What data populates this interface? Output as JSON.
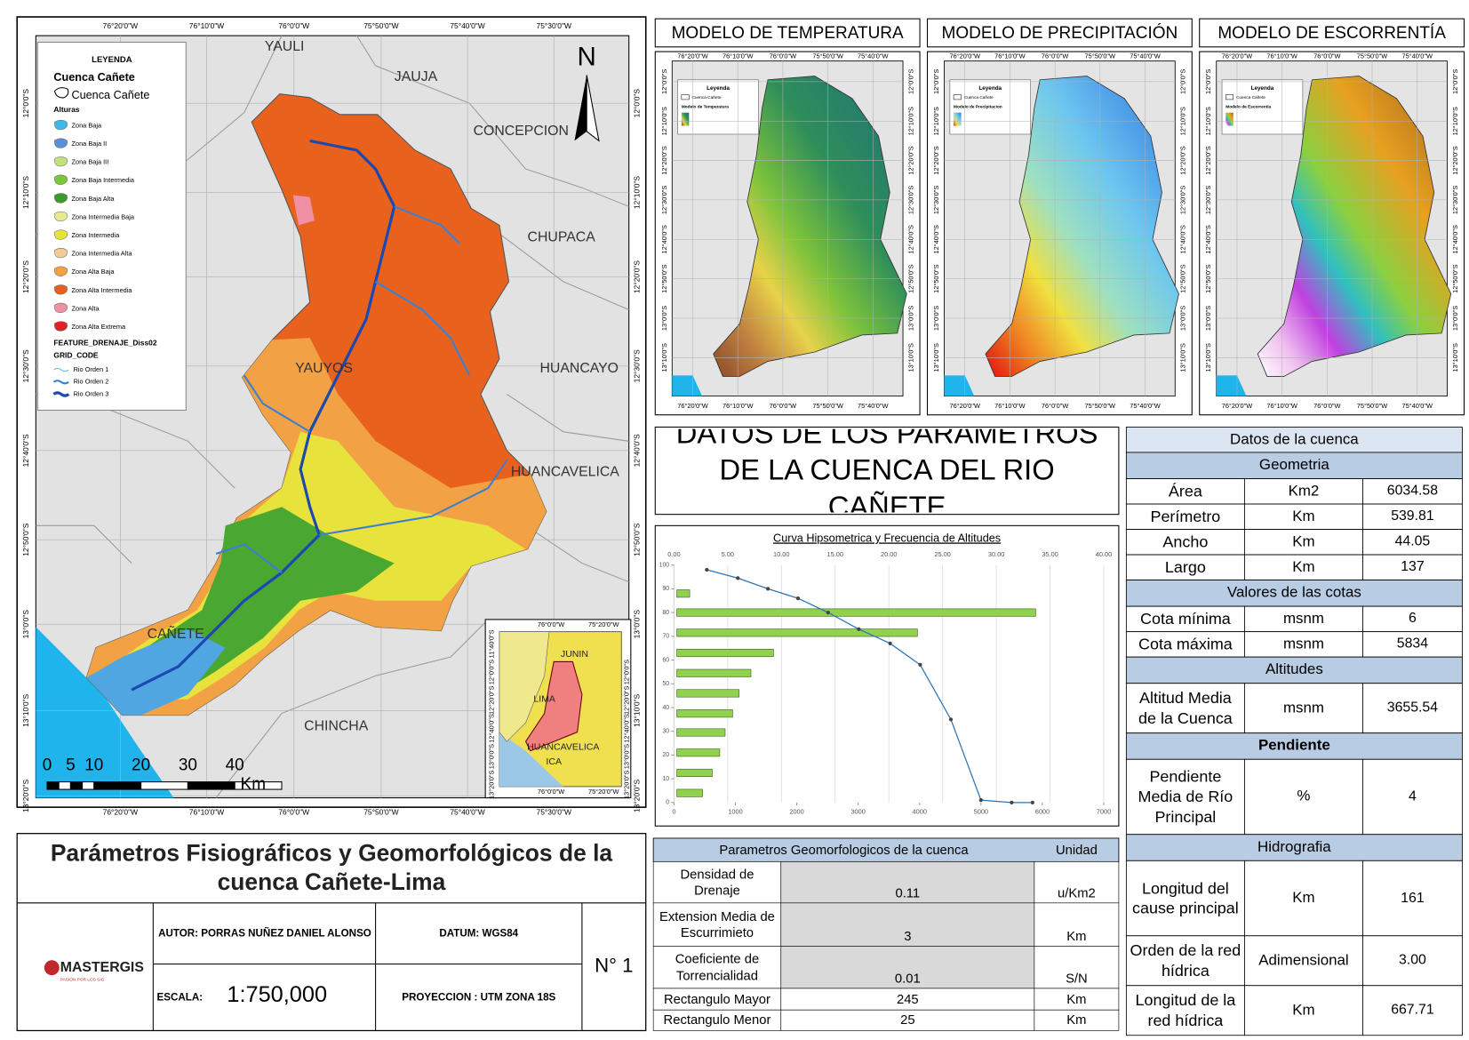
{
  "map": {
    "legend_title": "LEYENDA",
    "basin_heading": "Cuenca Cañete",
    "basin_item": "Cuenca Cañete",
    "heights_heading": "Alturas",
    "zones": [
      {
        "label": "Zona Baja",
        "color": "#3fb8e8"
      },
      {
        "label": "Zona Baja II",
        "color": "#5a8ed8"
      },
      {
        "label": "Zona Baja III",
        "color": "#bfe27c"
      },
      {
        "label": "Zona Baja Intermedia",
        "color": "#78c83a"
      },
      {
        "label": "Zona Baja Alta",
        "color": "#3a9a2c"
      },
      {
        "label": "Zona Intermedia Baja",
        "color": "#e8ea90"
      },
      {
        "label": "Zona Intermedia",
        "color": "#e8e23c"
      },
      {
        "label": "Zona Intermedia Alta",
        "color": "#f2cc98"
      },
      {
        "label": "Zona Alta Baja",
        "color": "#f2a244"
      },
      {
        "label": "Zona Alta Intermedia",
        "color": "#e8601e"
      },
      {
        "label": "Zona Alta",
        "color": "#f090a4"
      },
      {
        "label": "Zona Alta Extrema",
        "color": "#e02424"
      }
    ],
    "drainage_heading": "FEATURE_DRENAJE_Diss02",
    "grid_code": "GRID_CODE",
    "rivers": [
      {
        "label": "Rio Orden 1",
        "color": "#6cc0e8"
      },
      {
        "label": "Rio Orden 2",
        "color": "#3c80d2"
      },
      {
        "label": "Rio Orden 3",
        "color": "#1c48b0"
      }
    ],
    "north": "N",
    "places": [
      "YAULI",
      "JAUJA",
      "CONCEPCION",
      "CHUPACA",
      "HUANCAYO",
      "HUANCAVELICA",
      "YAUYOS",
      "CAÑETE",
      "CHINCHA"
    ],
    "scale_labels": [
      "0",
      "5",
      "10",
      "20",
      "30",
      "40"
    ],
    "scale_unit": "Km",
    "lon_labels": [
      "76°20'0\"W",
      "76°10'0\"W",
      "76°0'0\"W",
      "75°50'0\"W",
      "75°40'0\"W",
      "75°30'0\"W"
    ],
    "lat_labels": [
      "12°0'0\"S",
      "12°10'0\"S",
      "12°20'0\"S",
      "12°30'0\"S",
      "12°40'0\"S",
      "12°50'0\"S",
      "13°0'0\"S",
      "13°10'0\"S",
      "13°20'0\"S"
    ],
    "inset": {
      "labels": [
        "JUNIN",
        "LIMA",
        "HUANCAVELICA",
        "ICA"
      ],
      "lon_labels": [
        "76°0'0\"W",
        "75°20'0\"W"
      ],
      "lat_labels": [
        "11°40'0\"S",
        "12°0'0\"S",
        "12°20'0\"S",
        "12°40'0\"S",
        "13°0'0\"S",
        "13°20'0\"S"
      ]
    }
  },
  "models": [
    {
      "title": "MODELO DE TEMPERATURA",
      "legend_title": "Leyenda",
      "legend_item": "Cuenca Cañete",
      "legend_layer": "Modelo de Temperatura"
    },
    {
      "title": "MODELO DE PRECIPITACIÓN",
      "legend_title": "Leyenda",
      "legend_item": "Cuenca Cañete",
      "legend_layer": "Modelo de Precipitacion"
    },
    {
      "title": "MODELO DE ESCORRENTÍA",
      "legend_title": "Leyenda",
      "legend_item": "Cuenca Cañete",
      "legend_layer": "Modelo de Escorrentia"
    }
  ],
  "model_lon_labels": [
    "76°20'0\"W",
    "76°10'0\"W",
    "76°0'0\"W",
    "75°50'0\"W",
    "75°40'0\"W"
  ],
  "model_lat_labels": [
    "12°0'0\"S",
    "12°10'0\"S",
    "12°20'0\"S",
    "12°30'0\"S",
    "12°40'0\"S",
    "12°50'0\"S",
    "13°0'0\"S",
    "13°10'0\"S"
  ],
  "summary_title": "DATOS DE LOS PARAMETROS DE LA CUENCA DEL RIO CAÑETE",
  "chart_data": {
    "type": "hypsometric",
    "title": "Curva Hipsometrica y Frecuencia de Altitudes",
    "ylim": [
      0,
      100
    ],
    "yticks": [
      0,
      10,
      20,
      30,
      40,
      50,
      60,
      70,
      80,
      90,
      100
    ],
    "xlim": [
      0,
      7000
    ],
    "xticks": [
      0,
      1000,
      2000,
      3000,
      4000,
      5000,
      6000,
      7000
    ],
    "x2lim": [
      0,
      40
    ],
    "x2ticks": [
      {
        "value": 0,
        "label": "0.00"
      },
      {
        "value": 5,
        "label": "5.00"
      },
      {
        "value": 10,
        "label": "10.00"
      },
      {
        "value": 15,
        "label": "15.00"
      },
      {
        "value": 20,
        "label": "20.00"
      },
      {
        "value": 25,
        "label": "25.00"
      },
      {
        "value": 30,
        "label": "30.00"
      },
      {
        "value": 35,
        "label": "35.00"
      },
      {
        "value": 40,
        "label": "40.00"
      }
    ],
    "grid": true,
    "bars": {
      "color": "#92d050",
      "y": [
        4,
        12.5,
        21,
        29.5,
        37.5,
        46,
        54.5,
        63,
        71.5,
        80,
        88
      ],
      "values": [
        2.4,
        3.3,
        4.0,
        4.5,
        5.2,
        5.8,
        6.9,
        9.0,
        22.4,
        33.4,
        1.2
      ]
    },
    "line": {
      "color": "#2e75b6",
      "x": [
        535,
        1040,
        1530,
        2020,
        2510,
        3010,
        3520,
        4010,
        4510,
        5000,
        5500,
        5840
      ],
      "y": [
        98,
        94.5,
        90,
        86,
        80,
        73,
        67,
        58,
        35,
        1,
        0,
        0
      ]
    }
  },
  "basin_table": {
    "title": "Datos de la cuenca",
    "sections": [
      {
        "heading": "Geometria",
        "rows": [
          [
            "Área",
            "Km2",
            "6034.58"
          ],
          [
            "Perímetro",
            "Km",
            "539.81"
          ],
          [
            "Ancho",
            "Km",
            "44.05"
          ],
          [
            "Largo",
            "Km",
            "137"
          ]
        ]
      },
      {
        "heading": "Valores de las cotas",
        "rows": [
          [
            "Cota mínima",
            "msnm",
            "6"
          ],
          [
            "Cota máxima",
            "msnm",
            "5834"
          ]
        ]
      },
      {
        "heading": "Altitudes",
        "rows": [
          [
            "Altitud Media de la Cuenca",
            "msnm",
            "3655.54"
          ]
        ]
      },
      {
        "heading": "Pendiente",
        "rows": [
          [
            "Pendiente Media de Río Principal",
            "%",
            "4"
          ]
        ]
      },
      {
        "heading": "Hidrografia",
        "rows": [
          [
            "Longitud del cause principal",
            "Km",
            "161"
          ],
          [
            "Orden de la red hídrica",
            "Adimensional",
            "3.00"
          ],
          [
            "Longitud de la red hídrica",
            "Km",
            "667.71"
          ]
        ]
      }
    ]
  },
  "geomorph_table": {
    "header": [
      "Parametros Geomorfologicos de la cuenca",
      "Unidad"
    ],
    "rows": [
      [
        "Densidad de Drenaje",
        "0.11",
        "u/Km2"
      ],
      [
        "Extension Media de Escurrimieto",
        "3",
        "Km"
      ],
      [
        "Coeficiente de Torrencialidad",
        "0.01",
        "S/N"
      ],
      [
        "Rectangulo Mayor",
        "245",
        "Km"
      ],
      [
        "Rectangulo Menor",
        "25",
        "Km"
      ]
    ]
  },
  "title_block": {
    "title": "Parámetros Fisiográficos y Geomorfológicos de la cuenca Cañete-Lima",
    "logo": "MASTERGIS",
    "logo_tagline": "PASIÓN POR LOS SIG",
    "author": "AUTOR: PORRAS NUÑEZ DANIEL ALONSO",
    "datum": "DATUM: WGS84",
    "scale_label": "ESCALA:",
    "scale": "1:750,000",
    "projection": "PROYECCION : UTM ZONA 18S",
    "sheet": "N° 1"
  }
}
